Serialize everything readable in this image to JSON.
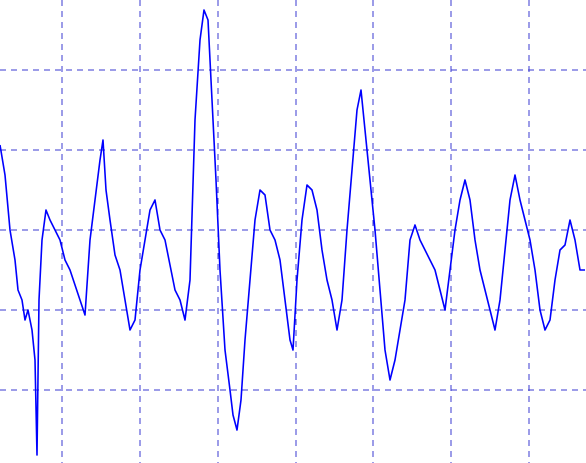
{
  "chart_data": {
    "type": "line",
    "color": "#0000ff",
    "grid": true,
    "xlim": [
      0,
      586
    ],
    "ylim": [
      0,
      463
    ],
    "xticks": [
      62,
      140,
      218,
      296,
      373,
      451,
      529
    ],
    "yticks": [
      73,
      153,
      233,
      313,
      393
    ],
    "x": [
      0,
      5,
      10,
      15,
      18,
      22,
      25,
      28,
      32,
      35,
      37,
      39,
      42,
      46,
      50,
      55,
      60,
      65,
      70,
      75,
      80,
      85,
      90,
      95,
      100,
      103,
      106,
      110,
      115,
      120,
      125,
      130,
      135,
      140,
      145,
      150,
      155,
      160,
      165,
      170,
      175,
      180,
      185,
      190,
      195,
      200,
      204,
      208,
      212,
      216,
      220,
      225,
      230,
      233,
      237,
      241,
      245,
      250,
      255,
      260,
      265,
      270,
      275,
      280,
      285,
      290,
      293,
      297,
      302,
      307,
      312,
      317,
      322,
      327,
      332,
      337,
      342,
      347,
      352,
      357,
      361,
      365,
      370,
      375,
      380,
      385,
      390,
      395,
      400,
      405,
      410,
      415,
      420,
      425,
      430,
      435,
      440,
      445,
      450,
      455,
      460,
      465,
      470,
      475,
      480,
      485,
      490,
      495,
      500,
      505,
      510,
      515,
      520,
      525,
      530,
      535,
      540,
      545,
      550,
      555,
      560,
      565,
      570,
      575,
      580,
      585
    ],
    "values": [
      318,
      288,
      233,
      203,
      173,
      163,
      143,
      153,
      133,
      103,
      8,
      163,
      223,
      253,
      243,
      233,
      223,
      203,
      193,
      178,
      163,
      148,
      223,
      263,
      303,
      323,
      273,
      243,
      208,
      193,
      163,
      133,
      143,
      193,
      223,
      253,
      263,
      233,
      223,
      198,
      173,
      163,
      143,
      183,
      343,
      423,
      453,
      443,
      363,
      283,
      193,
      113,
      73,
      48,
      33,
      63,
      123,
      183,
      243,
      273,
      268,
      233,
      223,
      203,
      163,
      123,
      113,
      183,
      243,
      278,
      273,
      253,
      213,
      183,
      163,
      133,
      163,
      233,
      293,
      353,
      373,
      333,
      283,
      233,
      173,
      113,
      83,
      103,
      133,
      163,
      223,
      238,
      223,
      213,
      203,
      193,
      173,
      153,
      193,
      233,
      263,
      283,
      263,
      223,
      193,
      173,
      153,
      133,
      163,
      213,
      263,
      288,
      263,
      243,
      223,
      193,
      153,
      133,
      143,
      183,
      213,
      218,
      243,
      223,
      193,
      193
    ]
  }
}
